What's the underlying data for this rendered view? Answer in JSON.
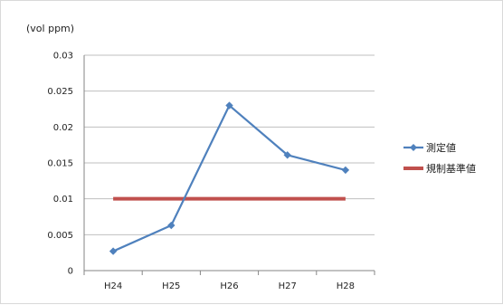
{
  "chart_data": {
    "type": "line",
    "unit_label": "(vol ppm)",
    "categories": [
      "H24",
      "H25",
      "H26",
      "H27",
      "H28"
    ],
    "y_ticks": [
      "0.03",
      "0.025",
      "0.02",
      "0.015",
      "0.01",
      "0.005",
      "0"
    ],
    "ylim": [
      0,
      0.03
    ],
    "grid": true,
    "legend_position": "right",
    "series": [
      {
        "name": "測定値",
        "values": [
          0.0027,
          0.0063,
          0.023,
          0.0161,
          0.014
        ],
        "color": "#4f81bd",
        "marker": "diamond"
      },
      {
        "name": "規制基準値",
        "values": [
          0.01,
          0.01,
          0.01,
          0.01,
          0.01
        ],
        "color": "#c0504d",
        "marker": "none"
      }
    ]
  }
}
